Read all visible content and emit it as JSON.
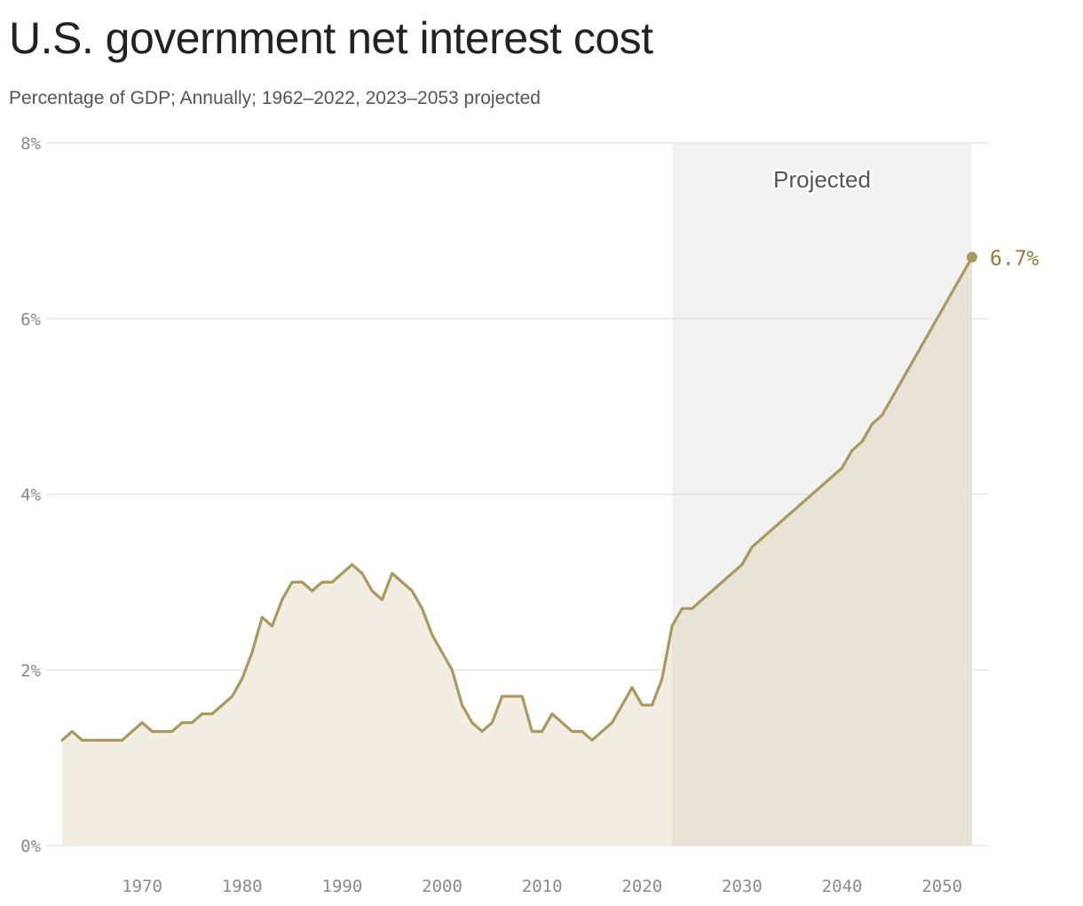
{
  "header": {
    "title": "U.S. government net interest cost",
    "subtitle": "Percentage of GDP; Annually; 1962–2022, 2023–2053 projected"
  },
  "colors": {
    "line": "#a89a5f",
    "area_historical": "#f1ede2",
    "area_projected": "#e8e3d7",
    "projection_band": "#f2f2f2",
    "gridline": "#e2e2e2",
    "end_label": "#8e7d3c"
  },
  "chart_data": {
    "type": "area",
    "title": "U.S. government net interest cost",
    "subtitle": "Percentage of GDP; Annually; 1962–2022, 2023–2053 projected",
    "xlabel": "",
    "ylabel": "",
    "xlim": [
      1962,
      2053
    ],
    "ylim": [
      0,
      8
    ],
    "x_ticks": [
      1970,
      1980,
      1990,
      2000,
      2010,
      2020,
      2030,
      2040,
      2050
    ],
    "x_tick_labels": [
      "1970",
      "1980",
      "1990",
      "2000",
      "2010",
      "2020",
      "2030",
      "2040",
      "2050"
    ],
    "y_ticks": [
      0,
      2,
      4,
      6,
      8
    ],
    "y_tick_labels": [
      "0%",
      "2%",
      "4%",
      "6%",
      "8%"
    ],
    "grid": true,
    "projection": {
      "start": 2023,
      "end": 2053,
      "label": "Projected"
    },
    "end_label": "6.7%",
    "series": [
      {
        "x": [
          1962,
          1963,
          1964,
          1965,
          1966,
          1967,
          1968,
          1969,
          1970,
          1971,
          1972,
          1973,
          1974,
          1975,
          1976,
          1977,
          1978,
          1979,
          1980,
          1981,
          1982,
          1983,
          1984,
          1985,
          1986,
          1987,
          1988,
          1989,
          1990,
          1991,
          1992,
          1993,
          1994,
          1995,
          1996,
          1997,
          1998,
          1999,
          2000,
          2001,
          2002,
          2003,
          2004,
          2005,
          2006,
          2007,
          2008,
          2009,
          2010,
          2011,
          2012,
          2013,
          2014,
          2015,
          2016,
          2017,
          2018,
          2019,
          2020,
          2021,
          2022,
          2023,
          2024,
          2025,
          2026,
          2027,
          2028,
          2029,
          2030,
          2031,
          2032,
          2033,
          2034,
          2035,
          2036,
          2037,
          2038,
          2039,
          2040,
          2041,
          2042,
          2043,
          2044,
          2045,
          2046,
          2047,
          2048,
          2049,
          2050,
          2051,
          2052,
          2053
        ],
        "values": [
          1.2,
          1.3,
          1.2,
          1.2,
          1.2,
          1.2,
          1.2,
          1.3,
          1.4,
          1.3,
          1.3,
          1.3,
          1.4,
          1.4,
          1.5,
          1.5,
          1.6,
          1.7,
          1.9,
          2.2,
          2.6,
          2.5,
          2.8,
          3.0,
          3.0,
          2.9,
          3.0,
          3.0,
          3.1,
          3.2,
          3.1,
          2.9,
          2.8,
          3.1,
          3.0,
          2.9,
          2.7,
          2.4,
          2.2,
          2.0,
          1.6,
          1.4,
          1.3,
          1.4,
          1.7,
          1.7,
          1.7,
          1.3,
          1.3,
          1.5,
          1.4,
          1.3,
          1.3,
          1.2,
          1.3,
          1.4,
          1.6,
          1.8,
          1.6,
          1.6,
          1.9,
          2.5,
          2.7,
          2.7,
          2.8,
          2.9,
          3.0,
          3.1,
          3.2,
          3.4,
          3.5,
          3.6,
          3.7,
          3.8,
          3.9,
          4.0,
          4.1,
          4.2,
          4.3,
          4.5,
          4.6,
          4.8,
          4.9,
          5.1,
          5.3,
          5.5,
          5.7,
          5.9,
          6.1,
          6.3,
          6.5,
          6.7
        ]
      }
    ]
  }
}
